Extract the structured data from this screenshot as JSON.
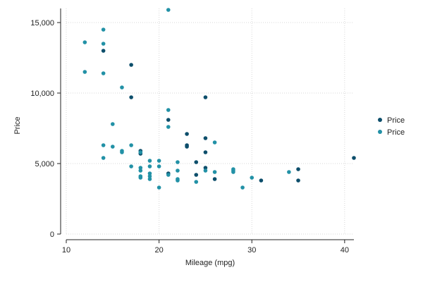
{
  "chart_data": {
    "type": "scatter",
    "xlabel": "Mileage (mpg)",
    "ylabel": "Price",
    "xlim": [
      10,
      41
    ],
    "ylim": [
      0,
      16000
    ],
    "xticks": [
      10,
      20,
      30,
      40
    ],
    "yticks": [
      0,
      5000,
      10000,
      15000
    ],
    "ytick_labels": [
      "0",
      "5,000",
      "10,000",
      "15,000"
    ],
    "grid": true,
    "legend_position": "right",
    "series": [
      {
        "name": "Price",
        "color": "#0d4e6b",
        "points": [
          [
            14,
            13000
          ],
          [
            17,
            12000
          ],
          [
            17,
            9700
          ],
          [
            21,
            8100
          ],
          [
            25,
            9700
          ],
          [
            23,
            7100
          ],
          [
            23,
            6300
          ],
          [
            23,
            6200
          ],
          [
            25,
            6800
          ],
          [
            25,
            5800
          ],
          [
            18,
            5900
          ],
          [
            18,
            5700
          ],
          [
            24,
            5100
          ],
          [
            24,
            4200
          ],
          [
            25,
            4700
          ],
          [
            26,
            3900
          ],
          [
            21,
            4300
          ],
          [
            31,
            3800
          ],
          [
            35,
            4600
          ],
          [
            35,
            3800
          ],
          [
            41,
            5400
          ]
        ]
      },
      {
        "name": "Price",
        "color": "#2291a6",
        "points": [
          [
            21,
            15900
          ],
          [
            14,
            14500
          ],
          [
            12,
            13600
          ],
          [
            14,
            13500
          ],
          [
            12,
            11500
          ],
          [
            14,
            11400
          ],
          [
            16,
            10400
          ],
          [
            21,
            8800
          ],
          [
            15,
            7800
          ],
          [
            21,
            7600
          ],
          [
            26,
            6500
          ],
          [
            14,
            6300
          ],
          [
            15,
            6200
          ],
          [
            17,
            6300
          ],
          [
            16,
            5900
          ],
          [
            16,
            5800
          ],
          [
            18,
            5800
          ],
          [
            14,
            5400
          ],
          [
            19,
            5200
          ],
          [
            20,
            5200
          ],
          [
            22,
            5100
          ],
          [
            17,
            4800
          ],
          [
            18,
            4700
          ],
          [
            19,
            4800
          ],
          [
            18,
            4500
          ],
          [
            20,
            4800
          ],
          [
            22,
            4500
          ],
          [
            25,
            4500
          ],
          [
            26,
            4400
          ],
          [
            28,
            4600
          ],
          [
            28,
            4500
          ],
          [
            28,
            4400
          ],
          [
            34,
            4400
          ],
          [
            19,
            4300
          ],
          [
            21,
            4200
          ],
          [
            19,
            4100
          ],
          [
            18,
            4000
          ],
          [
            19,
            3900
          ],
          [
            18,
            4100
          ],
          [
            22,
            3900
          ],
          [
            22,
            3800
          ],
          [
            24,
            3700
          ],
          [
            30,
            4000
          ],
          [
            20,
            3300
          ],
          [
            29,
            3300
          ]
        ]
      }
    ]
  }
}
